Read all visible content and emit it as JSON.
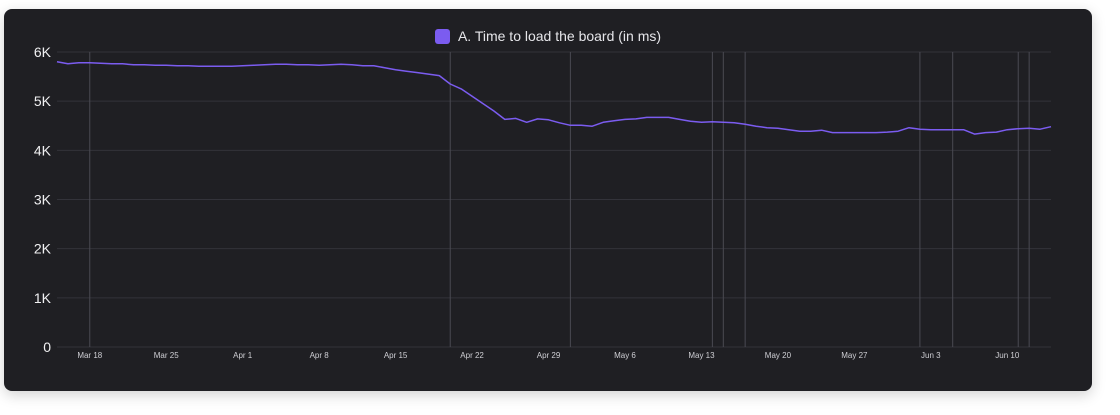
{
  "chart_data": {
    "type": "line",
    "title": "",
    "xlabel": "",
    "ylabel": "",
    "x_tick_labels": [
      "Mar 18",
      "Mar 25",
      "Apr 1",
      "Apr 8",
      "Apr 15",
      "Apr 22",
      "Apr 29",
      "May 6",
      "May 13",
      "May 20",
      "May 27",
      "Jun 3",
      "Jun 10"
    ],
    "y_tick_labels": [
      "0",
      "1K",
      "2K",
      "3K",
      "4K",
      "5K",
      "6K"
    ],
    "y_ticks": [
      0,
      1000,
      2000,
      3000,
      4000,
      5000,
      6000
    ],
    "ylim": [
      0,
      6000
    ],
    "grid": true,
    "legend_position": "top-center",
    "series": [
      {
        "name": "A. Time to load the board (in ms)",
        "color": "#7b5cf0",
        "points": [
          [
            "Mar 15",
            5800
          ],
          [
            "Mar 16",
            5760
          ],
          [
            "Mar 17",
            5780
          ],
          [
            "Mar 18",
            5780
          ],
          [
            "Mar 19",
            5770
          ],
          [
            "Mar 20",
            5760
          ],
          [
            "Mar 21",
            5760
          ],
          [
            "Mar 22",
            5740
          ],
          [
            "Mar 23",
            5740
          ],
          [
            "Mar 24",
            5730
          ],
          [
            "Mar 25",
            5730
          ],
          [
            "Mar 26",
            5720
          ],
          [
            "Mar 27",
            5720
          ],
          [
            "Mar 28",
            5710
          ],
          [
            "Mar 29",
            5710
          ],
          [
            "Mar 30",
            5710
          ],
          [
            "Mar 31",
            5710
          ],
          [
            "Apr 1",
            5720
          ],
          [
            "Apr 2",
            5730
          ],
          [
            "Apr 3",
            5740
          ],
          [
            "Apr 4",
            5750
          ],
          [
            "Apr 5",
            5750
          ],
          [
            "Apr 6",
            5740
          ],
          [
            "Apr 7",
            5740
          ],
          [
            "Apr 8",
            5730
          ],
          [
            "Apr 9",
            5740
          ],
          [
            "Apr 10",
            5750
          ],
          [
            "Apr 11",
            5740
          ],
          [
            "Apr 12",
            5720
          ],
          [
            "Apr 13",
            5720
          ],
          [
            "Apr 14",
            5680
          ],
          [
            "Apr 15",
            5640
          ],
          [
            "Apr 16",
            5610
          ],
          [
            "Apr 17",
            5580
          ],
          [
            "Apr 18",
            5550
          ],
          [
            "Apr 19",
            5520
          ],
          [
            "Apr 20",
            5350
          ],
          [
            "Apr 21",
            5250
          ],
          [
            "Apr 22",
            5100
          ],
          [
            "Apr 23",
            4950
          ],
          [
            "Apr 24",
            4800
          ],
          [
            "Apr 25",
            4630
          ],
          [
            "Apr 26",
            4650
          ],
          [
            "Apr 27",
            4570
          ],
          [
            "Apr 28",
            4640
          ],
          [
            "Apr 29",
            4620
          ],
          [
            "Apr 30",
            4560
          ],
          [
            "May 1",
            4510
          ],
          [
            "May 2",
            4510
          ],
          [
            "May 3",
            4490
          ],
          [
            "May 4",
            4570
          ],
          [
            "May 5",
            4600
          ],
          [
            "May 6",
            4630
          ],
          [
            "May 7",
            4640
          ],
          [
            "May 8",
            4670
          ],
          [
            "May 9",
            4670
          ],
          [
            "May 10",
            4670
          ],
          [
            "May 11",
            4630
          ],
          [
            "May 12",
            4590
          ],
          [
            "May 13",
            4570
          ],
          [
            "May 14",
            4580
          ],
          [
            "May 15",
            4570
          ],
          [
            "May 16",
            4560
          ],
          [
            "May 17",
            4530
          ],
          [
            "May 18",
            4490
          ],
          [
            "May 19",
            4460
          ],
          [
            "May 20",
            4450
          ],
          [
            "May 21",
            4420
          ],
          [
            "May 22",
            4390
          ],
          [
            "May 23",
            4390
          ],
          [
            "May 24",
            4410
          ],
          [
            "May 25",
            4360
          ],
          [
            "May 26",
            4360
          ],
          [
            "May 27",
            4360
          ],
          [
            "May 28",
            4360
          ],
          [
            "May 29",
            4360
          ],
          [
            "May 30",
            4370
          ],
          [
            "May 31",
            4390
          ],
          [
            "Jun 1",
            4460
          ],
          [
            "Jun 2",
            4430
          ],
          [
            "Jun 3",
            4420
          ],
          [
            "Jun 4",
            4420
          ],
          [
            "Jun 5",
            4420
          ],
          [
            "Jun 6",
            4420
          ],
          [
            "Jun 7",
            4330
          ],
          [
            "Jun 8",
            4360
          ],
          [
            "Jun 9",
            4370
          ],
          [
            "Jun 10",
            4420
          ],
          [
            "Jun 11",
            4440
          ],
          [
            "Jun 12",
            4450
          ],
          [
            "Jun 13",
            4430
          ],
          [
            "Jun 14",
            4480
          ]
        ]
      }
    ],
    "event_markers": [
      "Mar 18",
      "Apr 20",
      "May 1",
      "May 14",
      "May 15",
      "May 17",
      "Jun 2",
      "Jun 5",
      "Jun 11",
      "Jun 12"
    ]
  }
}
